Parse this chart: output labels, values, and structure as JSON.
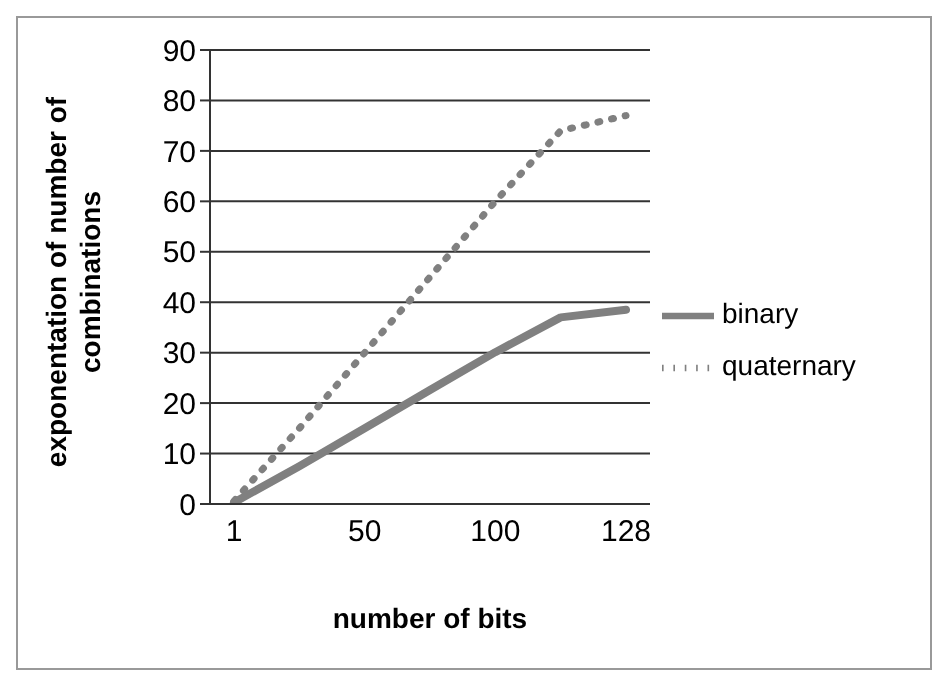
{
  "chart_data": {
    "type": "line",
    "xlabel": "number of bits",
    "ylabel": "exponentation of number of combinations",
    "categories": [
      "1",
      null,
      "50",
      null,
      "100",
      null,
      "128"
    ],
    "series": [
      {
        "name": "quaternary",
        "color": "#808080",
        "values": [
          0.6,
          15,
          30,
          45,
          60,
          74,
          77
        ],
        "line_style": "dotted"
      },
      {
        "name": "binary",
        "color": "#808080",
        "values": [
          0.3,
          7.5,
          15,
          22.6,
          30.1,
          37,
          38.5
        ],
        "line_style": "solid"
      }
    ],
    "ylim": [
      0,
      90
    ],
    "yticks": [
      0,
      10,
      20,
      30,
      40,
      50,
      60,
      70,
      80,
      90
    ],
    "grid": "y",
    "legend": "right",
    "marker": "none"
  }
}
